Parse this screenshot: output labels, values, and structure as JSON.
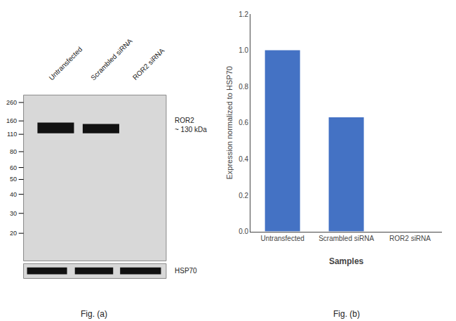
{
  "chart_data": [
    {
      "type": "western_blot",
      "categories": [
        "Untransfected",
        "Scrambled siRNA",
        "ROR2 siRNA"
      ],
      "markers": [
        260,
        160,
        110,
        80,
        60,
        50,
        40,
        30,
        20
      ],
      "band_labels": [
        "ROR2\n~ 130 kDa",
        "HSP70"
      ],
      "color": "#111111",
      "annotations": [
        "Fig. (a)"
      ]
    },
    {
      "type": "bar",
      "categories": [
        "Untransfected",
        "Scrambled siRNA",
        "ROR2 siRNA"
      ],
      "values": [
        1.0,
        0.63,
        0.0
      ],
      "color": "#4472c4",
      "xlabel": "Samples",
      "ylabel": "Expression normalized to HSP70",
      "ylim": [
        0,
        1.2
      ],
      "yticks": [
        {
          "value": 0,
          "label": "0.0"
        },
        0.2,
        0.4,
        0.6,
        0.8,
        {
          "value": 1.0,
          "label": "1.0"
        },
        1.2
      ],
      "grid": false,
      "annotations": [
        "Fig. (b)"
      ]
    }
  ]
}
